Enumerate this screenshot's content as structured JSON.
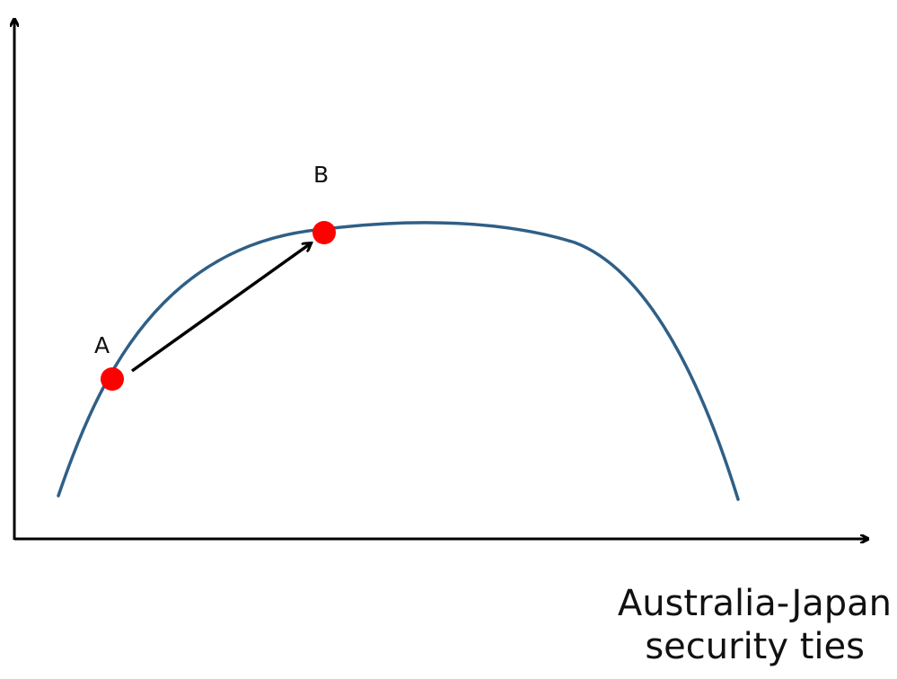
{
  "x_axis_label": {
    "line1": "Australia-Japan",
    "line2": "security ties"
  },
  "points": [
    {
      "id": "A",
      "label": "A"
    },
    {
      "id": "B",
      "label": "B"
    }
  ],
  "colors": {
    "curve": "#2f5f86",
    "point": "#ff0000",
    "axis": "#000000",
    "arrow": "#000000"
  }
}
